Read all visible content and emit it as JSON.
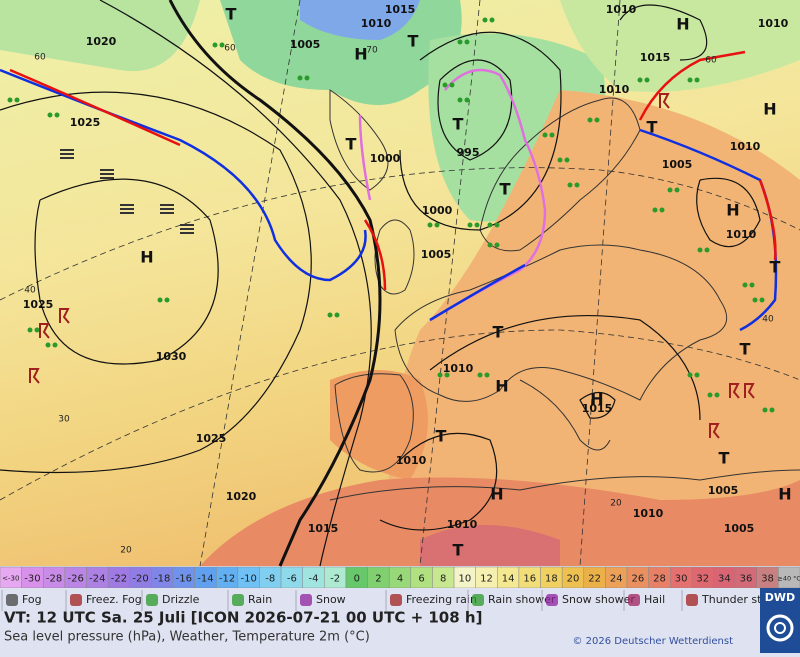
{
  "map": {
    "isobar_labels": [
      "1015",
      "1010",
      "1010",
      "1010",
      "1020",
      "1005",
      "1015",
      "1010",
      "1025",
      "1000",
      "995",
      "1005",
      "1010",
      "1000",
      "1005",
      "1010",
      "1025",
      "1030",
      "1010",
      "1015",
      "1010",
      "1025",
      "1020",
      "1005",
      "1010",
      "1015",
      "1010",
      "1005"
    ],
    "temperature_labels": [
      "60",
      "60",
      "70",
      "40",
      "30",
      "20",
      "60",
      "40",
      "20"
    ],
    "centers": [
      "T",
      "H",
      "H",
      "H",
      "H",
      "T",
      "T",
      "T",
      "H",
      "T",
      "T",
      "H",
      "T",
      "H",
      "T",
      "T",
      "H",
      "H",
      "T",
      "T",
      "T",
      "T"
    ]
  },
  "scale": {
    "low": "<-30",
    "values": [
      -30,
      -28,
      -26,
      -24,
      -22,
      -20,
      -18,
      -16,
      -14,
      -12,
      -10,
      -8,
      -6,
      -4,
      -2,
      0,
      2,
      4,
      6,
      8,
      10,
      12,
      14,
      16,
      18,
      20,
      22,
      24,
      26,
      28,
      30,
      32,
      34,
      36,
      38
    ],
    "high": "≥40 °C",
    "low_color": "#e6a8f0",
    "colors": [
      "#d891ea",
      "#c98be8",
      "#bb85e6",
      "#ad80e4",
      "#9f7ae2",
      "#8f7de4",
      "#7f86e8",
      "#6f92ec",
      "#60a0f0",
      "#62b0f2",
      "#6fc0f4",
      "#80cef0",
      "#8fdaea",
      "#a0e4e0",
      "#aeead2",
      "#66c86a",
      "#80d070",
      "#98d878",
      "#b0e080",
      "#c8e890",
      "#f4f4c8",
      "#f6f0b0",
      "#f4e890",
      "#f2de78",
      "#f0d060",
      "#eec050",
      "#ecb048",
      "#eca058",
      "#ea9060",
      "#e88068",
      "#e47070",
      "#de6870",
      "#d86474",
      "#d26a78",
      "#c88080"
    ],
    "high_color": "#b8b8b8"
  },
  "legend": [
    "Fog",
    "Freez. Fog",
    "Drizzle",
    "Rain",
    "Snow",
    "Freezing rain",
    "Rain shower",
    "Snow shower",
    "Hail",
    "Thunder storm"
  ],
  "footer": {
    "valid_time": "VT: 12 UTC Sa.  25 Juli [ICON 2026-07-21  00 UTC + 108 h]",
    "description": "Sea level pressure (hPa), Weather, Temperature 2m (°C)",
    "copyright": "© 2026 Deutscher Wetterdienst",
    "logo": "DWD"
  }
}
